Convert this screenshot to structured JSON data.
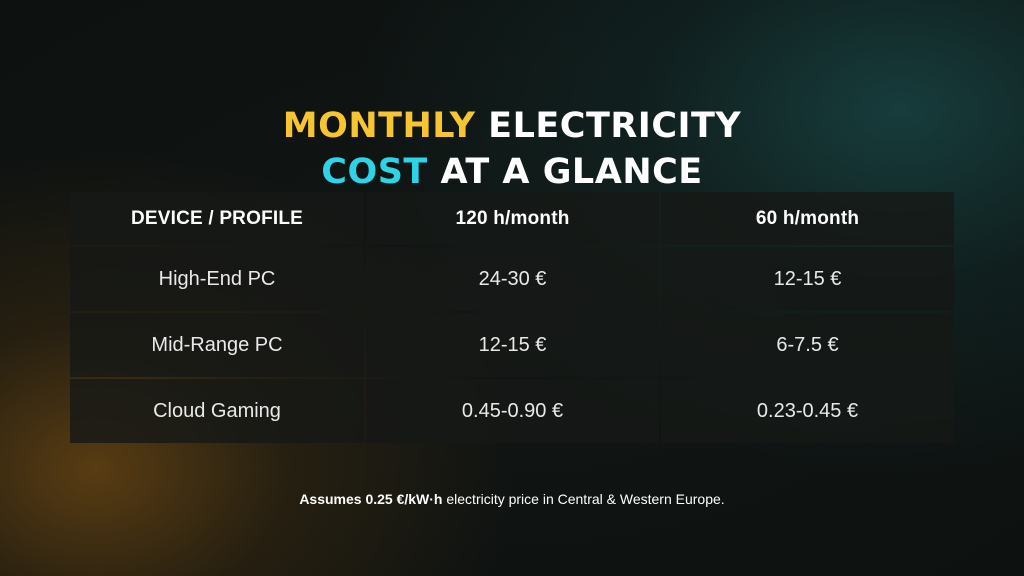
{
  "title": {
    "line1_accent": "MONTHLY",
    "line1_rest": " ELECTRICITY",
    "line2_accent": "COST",
    "line2_rest": " AT A GLANCE",
    "colors": {
      "accent1": "#f7c531",
      "accent2": "#2fd3e6"
    }
  },
  "table": {
    "headers": [
      "DEVICE / PROFILE",
      "120 h/month",
      "60 h/month"
    ],
    "rows": [
      [
        "High-End PC",
        "24-30 €",
        "12-15 €"
      ],
      [
        "Mid-Range PC",
        "12-15 €",
        "6-7.5 €"
      ],
      [
        "Cloud Gaming",
        "0.45-0.90 €",
        "0.23-0.45 €"
      ]
    ]
  },
  "footnote": {
    "bold": "Assumes 0.25 €/kW·h",
    "rest": " electricity price in Central & Western Europe."
  }
}
